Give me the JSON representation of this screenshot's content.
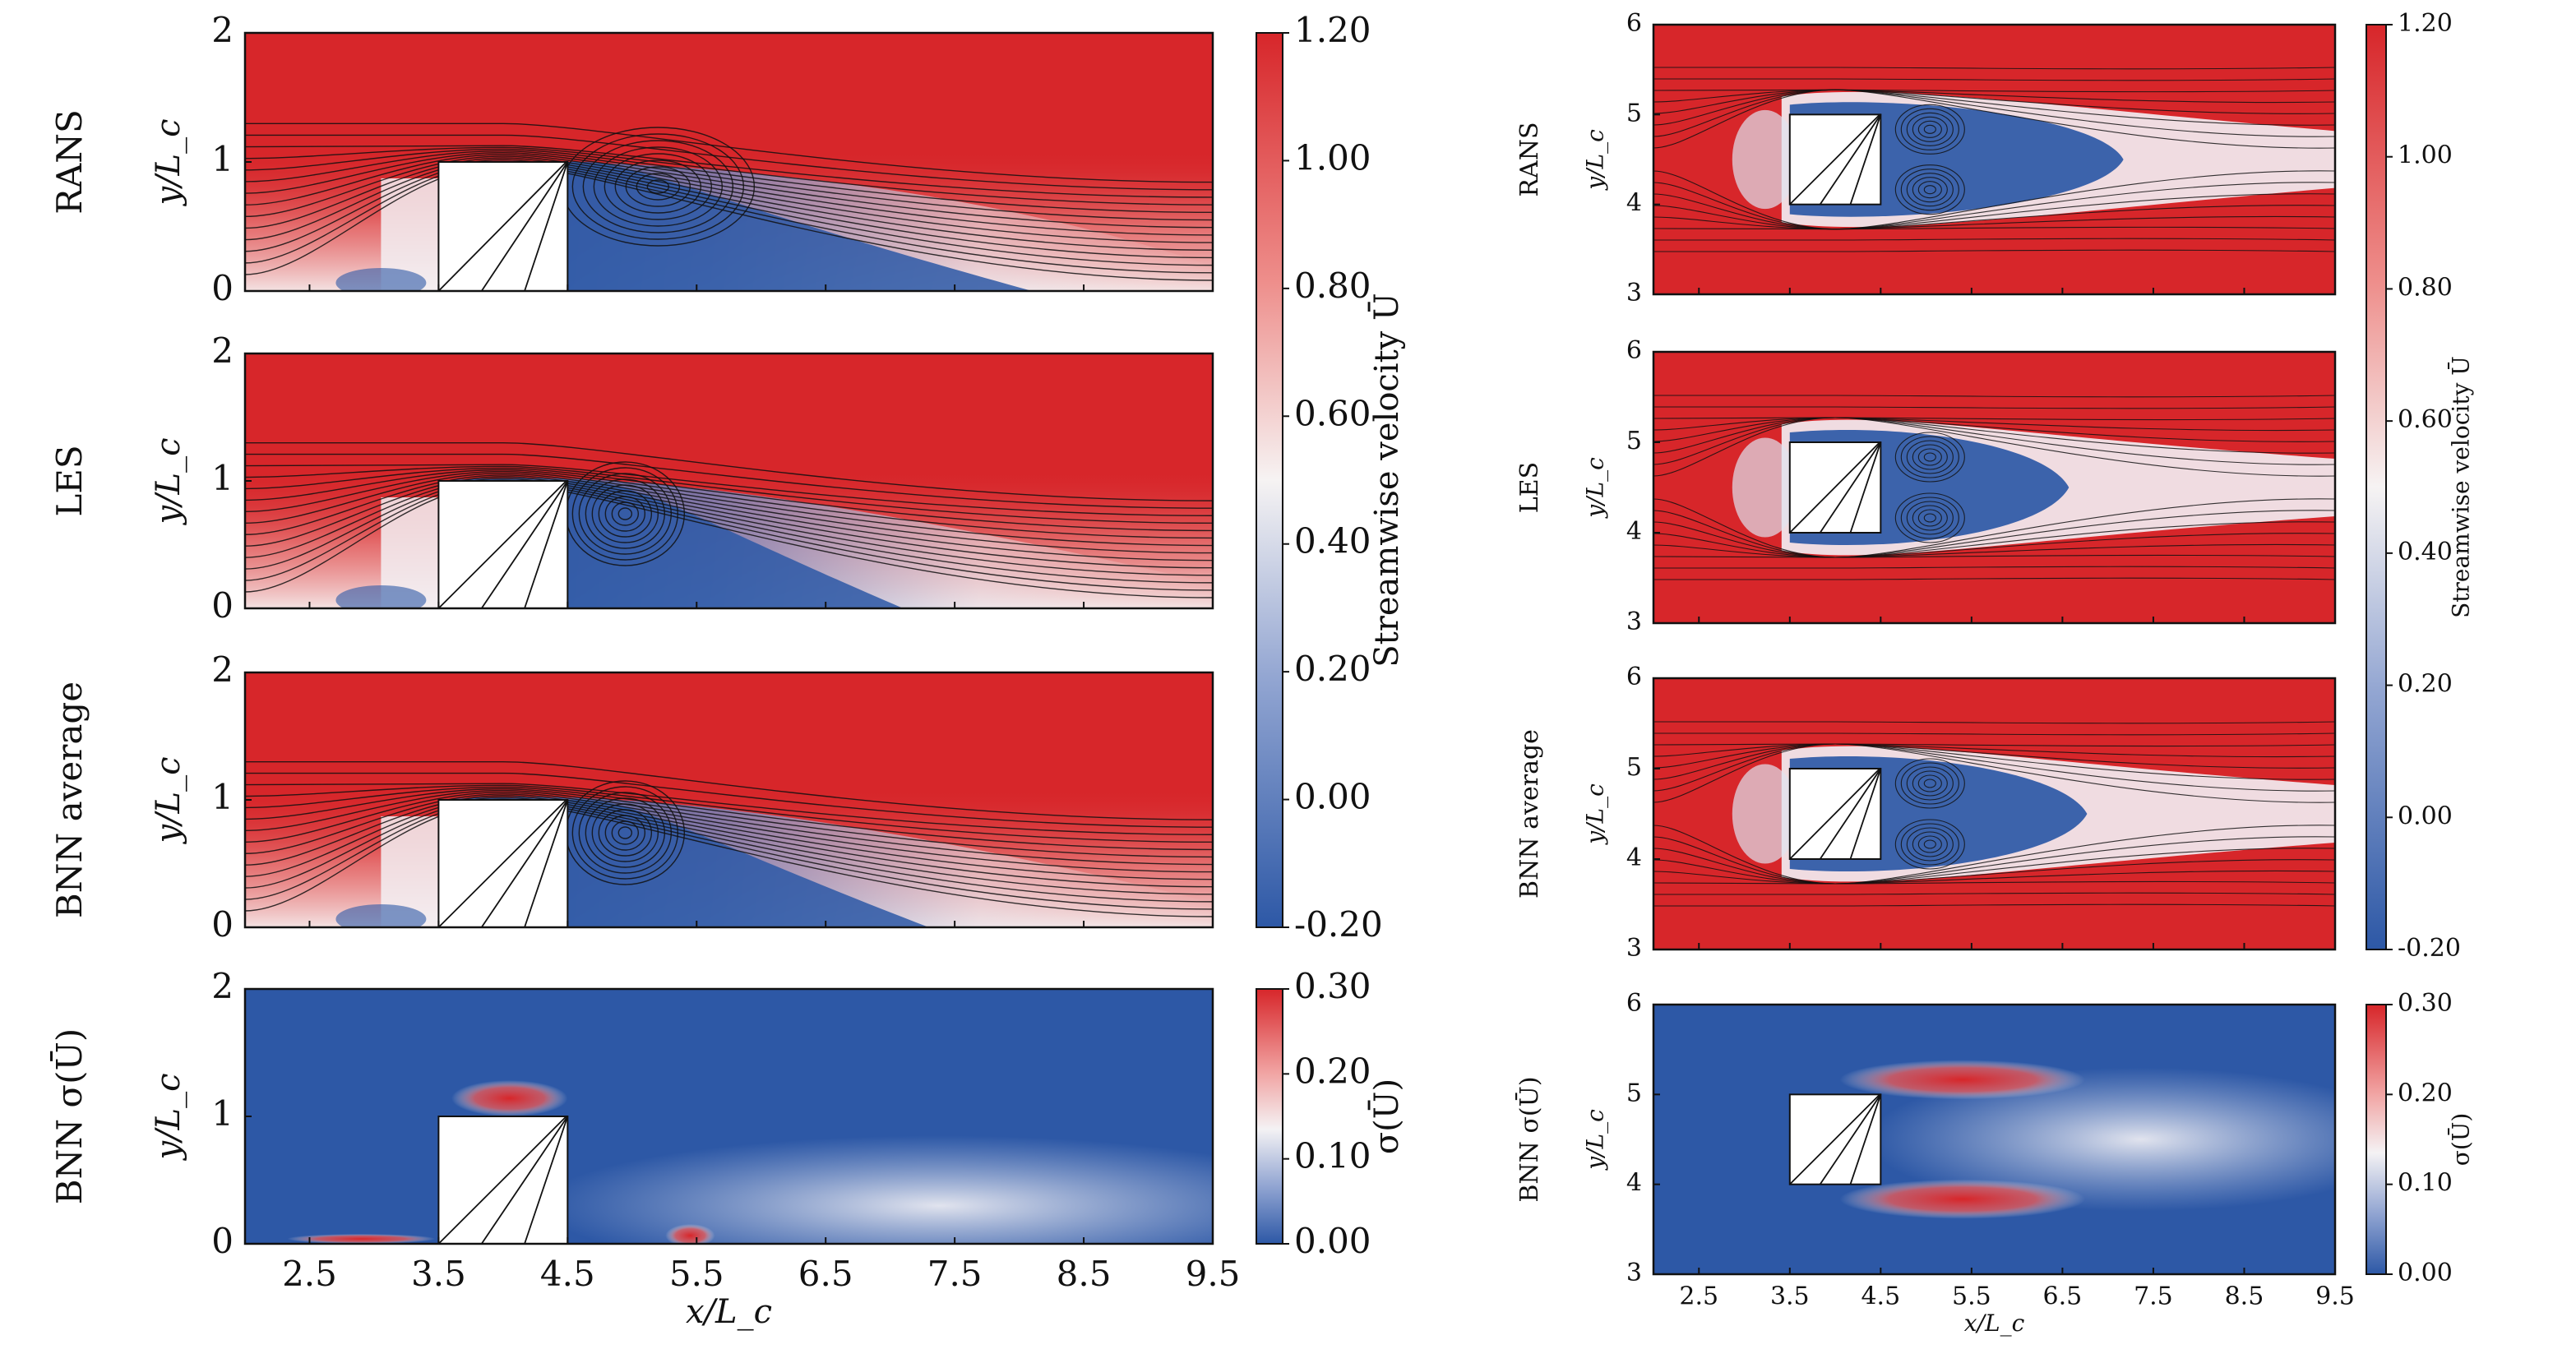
{
  "colors": {
    "high": "#d7262a",
    "mid": "#f7f7f7",
    "low": "#2d58a6",
    "streamline": "#111111"
  },
  "chart_data": [
    {
      "id": "left",
      "type": "heatmap",
      "subtype": "streamwise velocity contours with streamlines (channel, square obstacle)",
      "xlabel": "x/L_c",
      "ylabel": "y/L_c",
      "xticks": [
        "2.5",
        "3.5",
        "4.5",
        "5.5",
        "6.5",
        "7.5",
        "8.5",
        "9.5"
      ],
      "xlim": [
        2.0,
        9.5
      ],
      "ylim": [
        0,
        2
      ],
      "yticks": [
        "0",
        "1",
        "2"
      ],
      "obstacle": {
        "x": [
          3.5,
          4.5
        ],
        "y": [
          0,
          1
        ]
      },
      "panels": [
        {
          "name": "rans",
          "label": "RANS",
          "field": "mean"
        },
        {
          "name": "les",
          "label": "LES",
          "field": "mean"
        },
        {
          "name": "bnn",
          "label": "BNN average",
          "field": "mean"
        },
        {
          "name": "std",
          "label": "BNN σ(Ū)",
          "field": "std"
        }
      ],
      "colorbars": [
        {
          "label": "Streamwise velocity Ū",
          "ticks": [
            "1.20",
            "1.00",
            "0.80",
            "0.60",
            "0.40",
            "0.20",
            "0.00",
            "-0.20"
          ],
          "range": [
            -0.2,
            1.2
          ]
        },
        {
          "label": "σ(Ū)",
          "ticks": [
            "0.30",
            "0.20",
            "0.10",
            "0.00"
          ],
          "range": [
            0.0,
            0.3
          ]
        }
      ]
    },
    {
      "id": "right",
      "type": "heatmap",
      "subtype": "streamwise velocity contours with streamlines (square cylinder in free stream)",
      "xlabel": "x/L_c",
      "ylabel": "y/L_c",
      "xticks": [
        "2.5",
        "3.5",
        "4.5",
        "5.5",
        "6.5",
        "7.5",
        "8.5",
        "9.5"
      ],
      "xlim": [
        2.0,
        9.5
      ],
      "ylim": [
        3,
        6
      ],
      "yticks": [
        "3",
        "4",
        "5",
        "6"
      ],
      "obstacle": {
        "x": [
          3.5,
          4.5
        ],
        "y": [
          4,
          5
        ]
      },
      "panels": [
        {
          "name": "rans",
          "label": "RANS",
          "field": "mean"
        },
        {
          "name": "les",
          "label": "LES",
          "field": "mean"
        },
        {
          "name": "bnn",
          "label": "BNN average",
          "field": "mean"
        },
        {
          "name": "std",
          "label": "BNN σ(Ū)",
          "field": "std"
        }
      ],
      "colorbars": [
        {
          "label": "Streamwise velocity Ū",
          "ticks": [
            "1.20",
            "1.00",
            "0.80",
            "0.60",
            "0.40",
            "0.20",
            "0.00",
            "-0.20"
          ],
          "range": [
            -0.2,
            1.2
          ]
        },
        {
          "label": "σ(Ū)",
          "ticks": [
            "0.30",
            "0.20",
            "0.10",
            "0.00"
          ],
          "range": [
            0.0,
            0.3
          ]
        }
      ]
    }
  ]
}
